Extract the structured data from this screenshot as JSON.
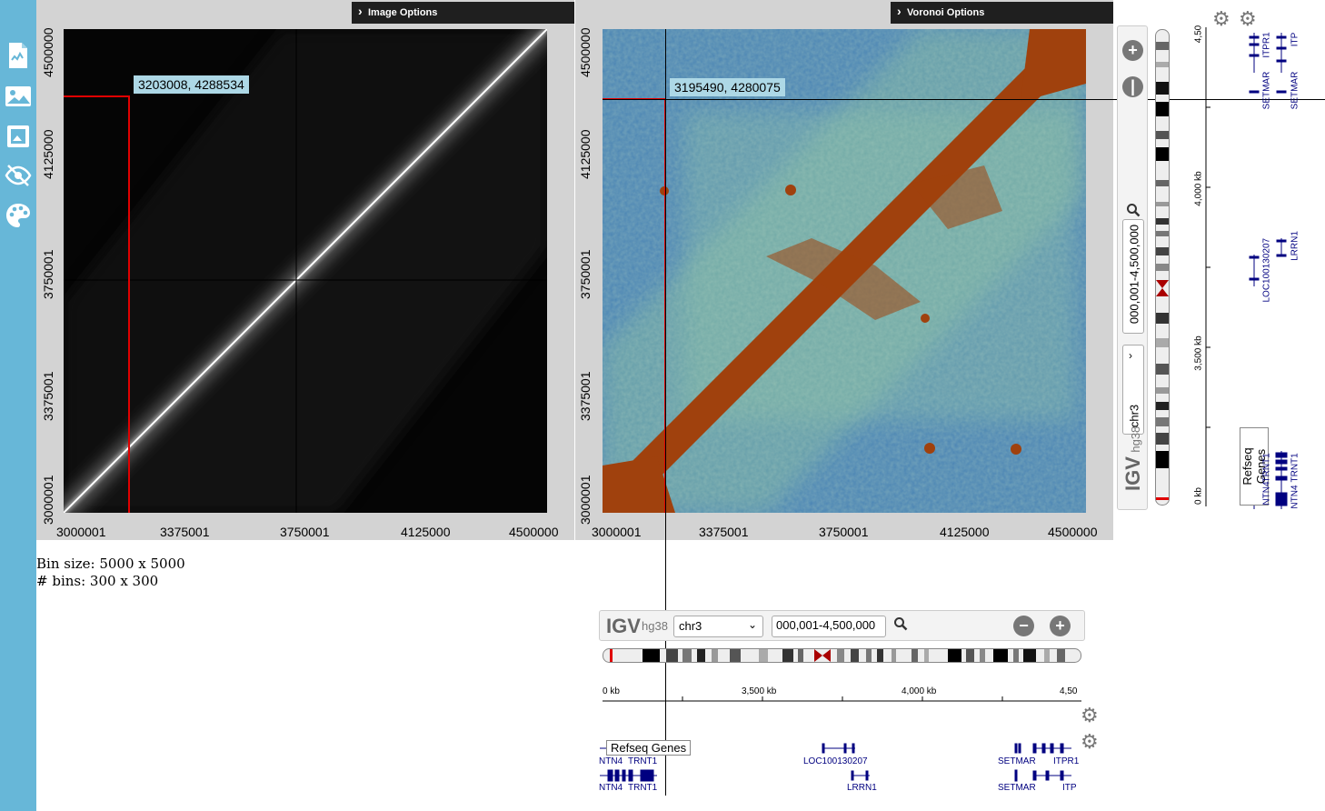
{
  "sidebar": {
    "icons": [
      "document-chart-icon",
      "image-icon",
      "image-frame-icon",
      "hidden-eye-icon",
      "palette-icon"
    ]
  },
  "panel_left": {
    "options_label": "Image Options",
    "coord_label": "3203008, 4288534",
    "x_ticks": [
      "3000001",
      "3375001",
      "3750001",
      "4125000",
      "4500000"
    ],
    "y_ticks": [
      "4500000",
      "4125000",
      "3750001",
      "3375001",
      "3000001"
    ]
  },
  "panel_right": {
    "options_label": "Voronoi Options",
    "coord_label": "3195490, 4280075",
    "x_ticks": [
      "3000001",
      "3375001",
      "3750001",
      "4125000",
      "4500000"
    ],
    "y_ticks": [
      "4500000",
      "4125000",
      "3750001",
      "3375001",
      "3000001"
    ]
  },
  "info": {
    "bin_size": "Bin size: 5000 x 5000",
    "num_bins": "# bins: 300 x 300"
  },
  "igv_horizontal": {
    "logo": "IGV",
    "genome": "hg38",
    "chromosome": "chr3",
    "locus": "000,001-4,500,000",
    "ruler": [
      "0 kb",
      "3,500 kb",
      "4,000 kb",
      "4,50"
    ],
    "track_label": "Refseq Genes",
    "genes_row1": [
      "NTN4",
      "TRNT1",
      "LOC100130207",
      "SETMAR",
      "ITPR1"
    ],
    "genes_row2": [
      "NTN4",
      "TRNT1",
      "LRRN1",
      "SETMAR",
      "ITP"
    ]
  },
  "igv_vertical": {
    "logo": "IGV",
    "genome": "hg38",
    "chromosome": "chr3",
    "locus": "000,001-4,500,000",
    "ruler": [
      "4,50",
      "4,000 kb",
      "3,500 kb",
      "0 kb"
    ],
    "track_label": "Refseq Genes",
    "genes_col1": [
      "SETMAR",
      "ITPR1",
      "LOC100130207",
      "NTN4",
      "TRNT1"
    ],
    "genes_col2": [
      "SETMAR",
      "ITP",
      "LRRN1",
      "NTN4",
      "TRNT1"
    ]
  },
  "colors": {
    "sidebar": "#67b7d8",
    "selection_red": "#e00000",
    "contact_brown": "#a0410d",
    "heat_blue": "#4a84b4"
  }
}
